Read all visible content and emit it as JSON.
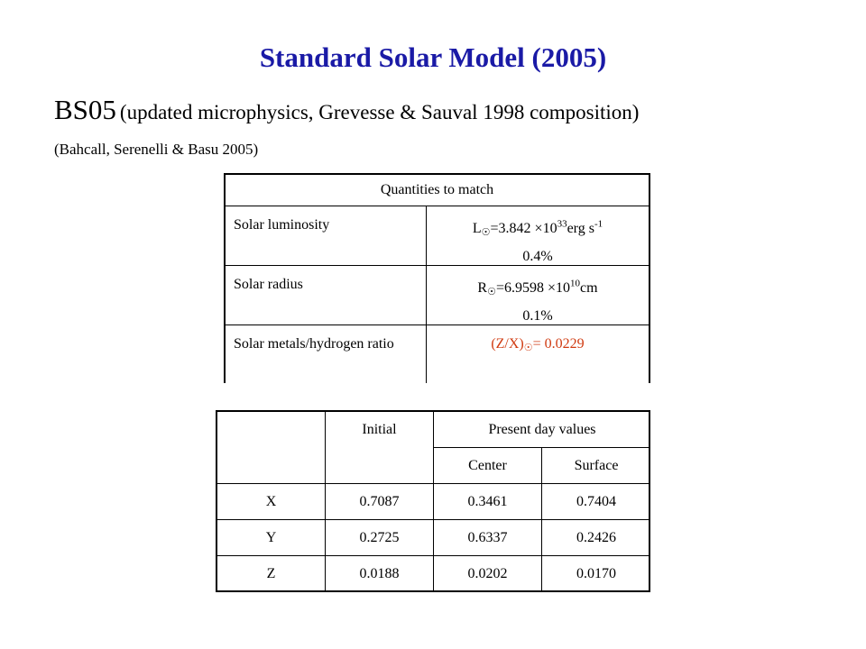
{
  "title": "Standard Solar Model (2005)",
  "subtitle": {
    "main": "BS05",
    "detail": "(updated microphysics, Grevesse & Sauval 1998 composition)"
  },
  "citation": "(Bahcall, Serenelli & Basu 2005)",
  "match_table": {
    "header": "Quantities to match",
    "rows": [
      {
        "label": "Solar luminosity",
        "value_prefix": "L",
        "value_main": "=3.842 ×10",
        "value_exp": "33",
        "value_unit": "erg s",
        "value_unit_exp": "-1",
        "uncertainty": "0.4%"
      },
      {
        "label": "Solar radius",
        "value_prefix": "R",
        "value_main": "=6.9598 ×10",
        "value_exp": "10",
        "value_unit": "cm",
        "uncertainty": "0.1%"
      },
      {
        "label": "Solar metals/hydrogen ratio",
        "value_prefix": "(Z/X)",
        "value_main": "= 0.0229",
        "value_color": "#d03a10"
      }
    ],
    "sun_symbol": "☉"
  },
  "abundance_table": {
    "headers": {
      "initial": "Initial",
      "present": "Present day values",
      "center": "Center",
      "surface": "Surface"
    },
    "rows": [
      {
        "element": "X",
        "initial": "0.7087",
        "center": "0.3461",
        "surface": "0.7404"
      },
      {
        "element": "Y",
        "initial": "0.2725",
        "center": "0.6337",
        "surface": "0.2426"
      },
      {
        "element": "Z",
        "initial": "0.0188",
        "center": "0.0202",
        "surface": "0.0170"
      }
    ]
  }
}
